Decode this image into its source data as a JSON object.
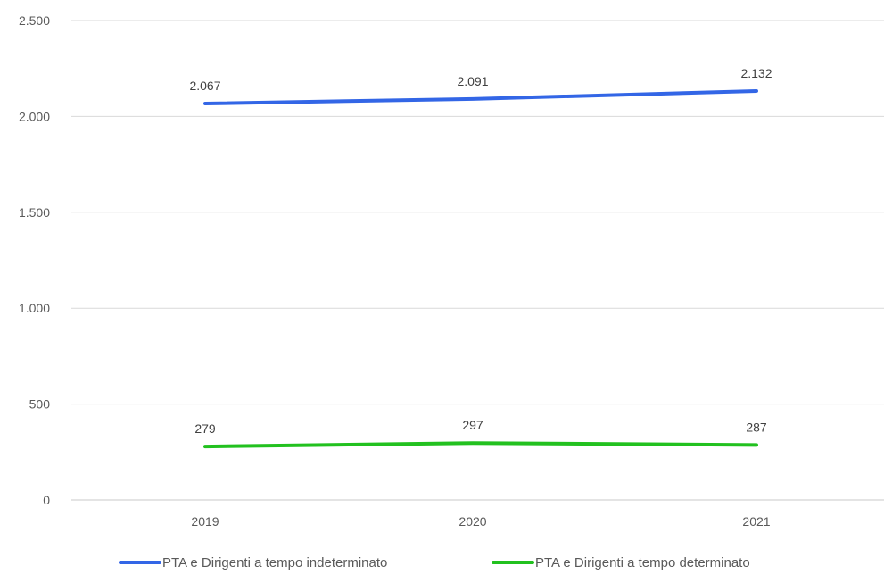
{
  "chart_data": {
    "type": "line",
    "title": "",
    "xlabel": "",
    "ylabel": "",
    "x": [
      "2019",
      "2020",
      "2021"
    ],
    "ylim": [
      0,
      2500
    ],
    "y_ticks": [
      0,
      500,
      1000,
      1500,
      2000,
      2500
    ],
    "y_tick_labels": [
      "0",
      "500",
      "1.000",
      "1.500",
      "2.000",
      "2.500"
    ],
    "grid": true,
    "legend_position": "bottom",
    "series": [
      {
        "name": "PTA e Dirigenti a tempo indeterminato",
        "values": [
          2067,
          2091,
          2132
        ],
        "labels": [
          "2.067",
          "2.091",
          "2.132"
        ],
        "color": "#3366e6"
      },
      {
        "name": "PTA e Dirigenti a tempo determinato",
        "values": [
          279,
          297,
          287
        ],
        "labels": [
          "279",
          "297",
          "287"
        ],
        "color": "#22c11f"
      }
    ]
  }
}
